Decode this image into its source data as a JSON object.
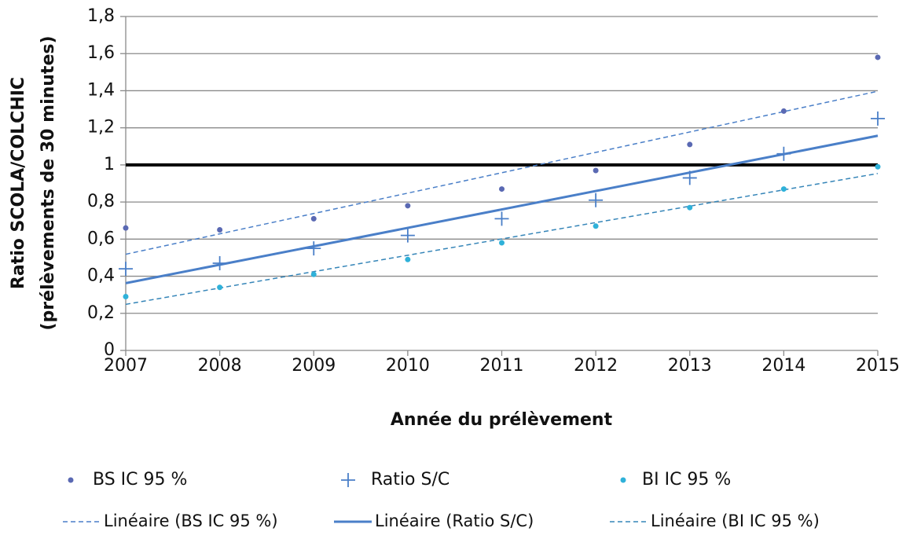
{
  "chart_data": {
    "type": "scatter",
    "xlabel": "Année du prélèvement",
    "ylabel": [
      "Ratio SCOLA/COLCHIC",
      "(prélèvements de 30 minutes)"
    ],
    "x": [
      2007,
      2008,
      2009,
      2010,
      2011,
      2012,
      2013,
      2014,
      2015
    ],
    "xlim": [
      2007,
      2015
    ],
    "xticks": [
      2007,
      2008,
      2009,
      2010,
      2011,
      2012,
      2013,
      2014,
      2015
    ],
    "ylim": [
      0,
      1.8
    ],
    "yticks": [
      0,
      {
        "value": 0.2,
        "label": "0,2"
      },
      {
        "value": 0.4,
        "label": "0,4"
      },
      {
        "value": 0.6,
        "label": "0,6"
      },
      {
        "value": 0.8,
        "label": "0,8"
      },
      1,
      {
        "value": 1.2,
        "label": "1,2"
      },
      {
        "value": 1.4,
        "label": "1,4"
      },
      {
        "value": 1.6,
        "label": "1,6"
      },
      {
        "value": 1.8,
        "label": "1,8"
      }
    ],
    "grid": true,
    "reference_line": 1,
    "series": [
      {
        "name": "BS IC 95 %",
        "color": "#5a69b3",
        "marker": "dot",
        "values": [
          0.66,
          0.65,
          0.71,
          0.78,
          0.87,
          0.97,
          1.11,
          1.29,
          1.58
        ],
        "trendline": {
          "name": "Linéaire (BS IC 95 %)",
          "color": "#4a7fc8",
          "dashed": true
        }
      },
      {
        "name": "Ratio S/C",
        "color": "#4a7fc8",
        "marker": "plus",
        "values": [
          0.44,
          0.47,
          0.55,
          0.62,
          0.71,
          0.81,
          0.93,
          1.06,
          1.25
        ],
        "trendline": {
          "name": "Linéaire (Ratio S/C)",
          "color": "#4a7fc8",
          "dashed": false
        }
      },
      {
        "name": "BI IC 95 %",
        "color": "#2fb1d9",
        "marker": "dot",
        "values": [
          0.29,
          0.34,
          0.41,
          0.49,
          0.58,
          0.67,
          0.77,
          0.87,
          0.99
        ],
        "trendline": {
          "name": "Linéaire (BI IC 95 %)",
          "color": "#3585b8",
          "dashed": true
        }
      }
    ]
  }
}
